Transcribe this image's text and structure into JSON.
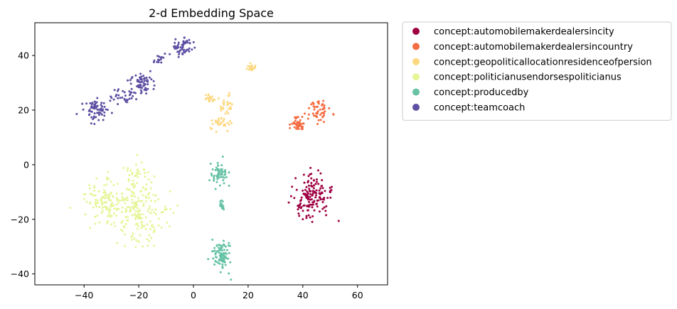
{
  "chart_data": {
    "type": "scatter",
    "title": "2-d Embedding Space",
    "xlabel": "",
    "ylabel": "",
    "xlim": [
      -58,
      71
    ],
    "ylim": [
      -44,
      52
    ],
    "xticks": [
      -40,
      -20,
      0,
      20,
      40,
      60
    ],
    "yticks": [
      -40,
      -20,
      0,
      20,
      40
    ],
    "grid": false,
    "legend_position": "outside-right-top",
    "series": [
      {
        "name": "concept:automobilemakerdealersincity",
        "color": "#9e0142",
        "clusters": [
          {
            "center": [
              43,
              -12
            ],
            "spread": [
              3.5,
              4.5
            ],
            "count": 150
          }
        ]
      },
      {
        "name": "concept:automobilemakerdealersincountry",
        "color": "#f46d43",
        "clusters": [
          {
            "center": [
              45.5,
              19.5
            ],
            "spread": [
              2.2,
              1.8
            ],
            "count": 55
          },
          {
            "center": [
              38,
              15
            ],
            "spread": [
              1.2,
              1.3
            ],
            "count": 45
          }
        ]
      },
      {
        "name": "concept:geopoliticallocationresidenceofpersion",
        "color": "#fdd880",
        "clusters": [
          {
            "center": [
              21,
              35.5
            ],
            "spread": [
              0.8,
              0.6
            ],
            "count": 20
          },
          {
            "center": [
              6,
              24.5
            ],
            "spread": [
              1.2,
              1.0
            ],
            "count": 20
          },
          {
            "center": [
              12,
              22
            ],
            "spread": [
              1.3,
              1.4
            ],
            "count": 25
          },
          {
            "center": [
              10,
              15
            ],
            "spread": [
              1.8,
              1.2
            ],
            "count": 30
          }
        ]
      },
      {
        "name": "concept:politicianusendorsespoliticianus",
        "color": "#e6f598",
        "clusters": [
          {
            "center": [
              -20,
              -17
            ],
            "spread": [
              5.0,
              7.0
            ],
            "count": 200
          },
          {
            "center": [
              -33,
              -14
            ],
            "spread": [
              4.0,
              4.0
            ],
            "count": 100
          },
          {
            "center": [
              -21,
              -3
            ],
            "spread": [
              2.0,
              1.3
            ],
            "count": 20
          }
        ]
      },
      {
        "name": "concept:producedby",
        "color": "#66c2a5",
        "clusters": [
          {
            "center": [
              9.5,
              -3.5
            ],
            "spread": [
              1.5,
              2.5
            ],
            "count": 55
          },
          {
            "center": [
              10.5,
              -15
            ],
            "spread": [
              0.5,
              1.0
            ],
            "count": 15
          },
          {
            "center": [
              10.5,
              -33
            ],
            "spread": [
              1.6,
              3.0
            ],
            "count": 85
          }
        ]
      },
      {
        "name": "concept:teamcoach",
        "color": "#5e4fa2",
        "clusters": [
          {
            "center": [
              -35.5,
              20.5
            ],
            "spread": [
              2.5,
              2.0
            ],
            "count": 70
          },
          {
            "center": [
              -26,
              25.5
            ],
            "spread": [
              2.5,
              2.0
            ],
            "count": 35
          },
          {
            "center": [
              -19,
              30
            ],
            "spread": [
              2.6,
              2.2
            ],
            "count": 60
          },
          {
            "center": [
              -4.5,
              43
            ],
            "spread": [
              2.0,
              2.0
            ],
            "count": 55
          },
          {
            "center": [
              -13,
              39
            ],
            "spread": [
              1.2,
              1.0
            ],
            "count": 15
          }
        ]
      }
    ]
  }
}
